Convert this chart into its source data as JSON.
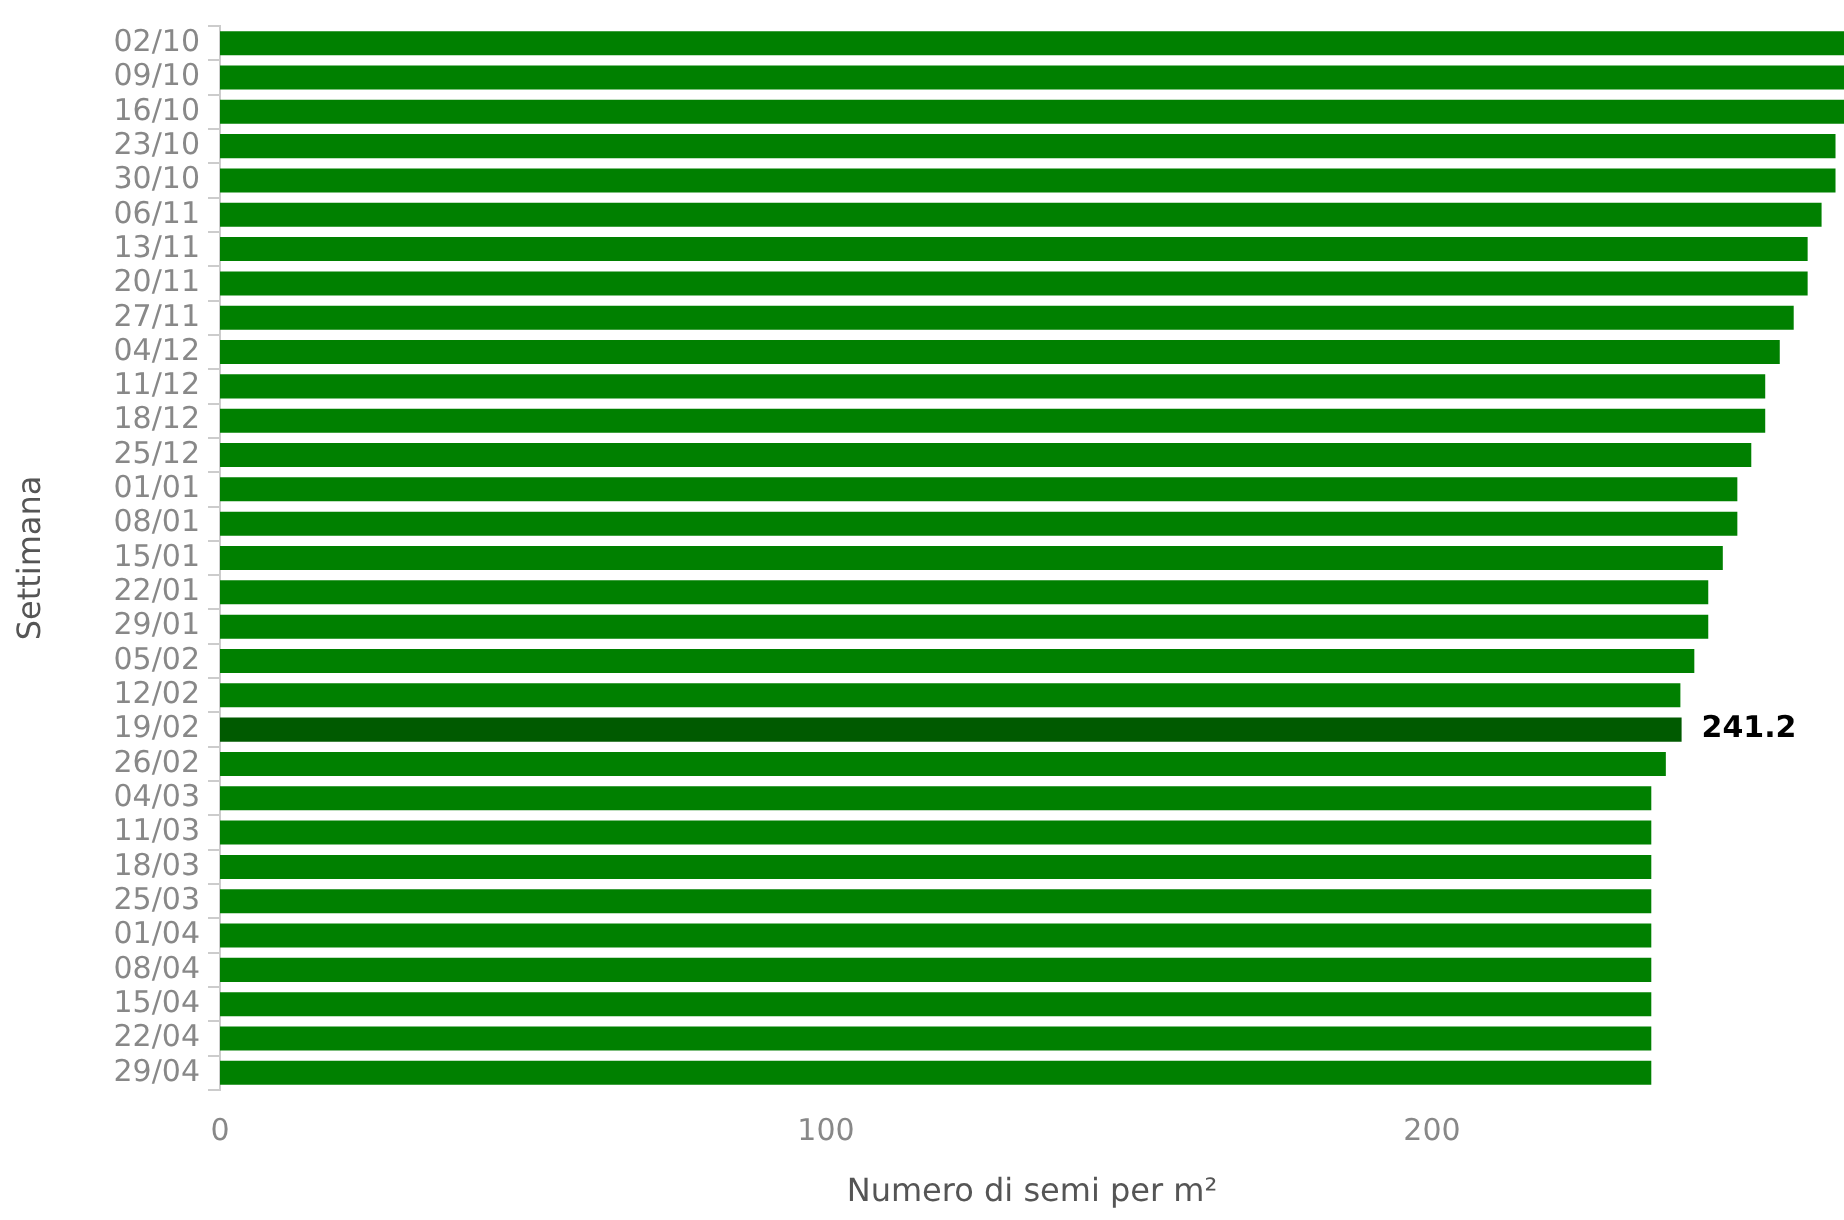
{
  "chart_data": {
    "type": "bar",
    "orientation": "horizontal",
    "xlabel": "Numero di semi per m²",
    "ylabel": "Settimana",
    "categories": [
      "02/10",
      "09/10",
      "16/10",
      "23/10",
      "30/10",
      "06/11",
      "13/11",
      "20/11",
      "27/11",
      "04/12",
      "11/12",
      "18/12",
      "25/12",
      "01/01",
      "08/01",
      "15/01",
      "22/01",
      "29/01",
      "05/02",
      "12/02",
      "19/02",
      "26/02",
      "04/03",
      "11/03",
      "18/03",
      "25/03",
      "01/04",
      "08/04",
      "15/04",
      "22/04",
      "29/04"
    ],
    "values": [
      268,
      268,
      268,
      266.6,
      266.6,
      264.3,
      262,
      262,
      259.7,
      257.4,
      255,
      255,
      252.7,
      250.4,
      250.4,
      248,
      245.6,
      245.6,
      243.3,
      241,
      241.2,
      238.6,
      236.2,
      236.2,
      236.2,
      236.2,
      236.2,
      236.2,
      236.2,
      236.2,
      236.2
    ],
    "colors": [
      "#008000",
      "#008000",
      "#008000",
      "#008000",
      "#008000",
      "#008000",
      "#008000",
      "#008000",
      "#008000",
      "#008000",
      "#008000",
      "#008000",
      "#008000",
      "#008000",
      "#008000",
      "#008000",
      "#008000",
      "#008000",
      "#008000",
      "#008000",
      "#005a00",
      "#008000",
      "#008000",
      "#008000",
      "#008000",
      "#008000",
      "#008000",
      "#008000",
      "#008000",
      "#008000",
      "#008000"
    ],
    "value_labels": [
      null,
      null,
      null,
      null,
      null,
      null,
      null,
      null,
      null,
      null,
      null,
      null,
      null,
      null,
      null,
      null,
      null,
      null,
      null,
      null,
      "241.2",
      null,
      null,
      null,
      null,
      null,
      null,
      null,
      null,
      null,
      null
    ],
    "xlim": [
      0,
      268
    ],
    "xticks": [
      0,
      100,
      200
    ],
    "grid": false,
    "legend": false
  }
}
